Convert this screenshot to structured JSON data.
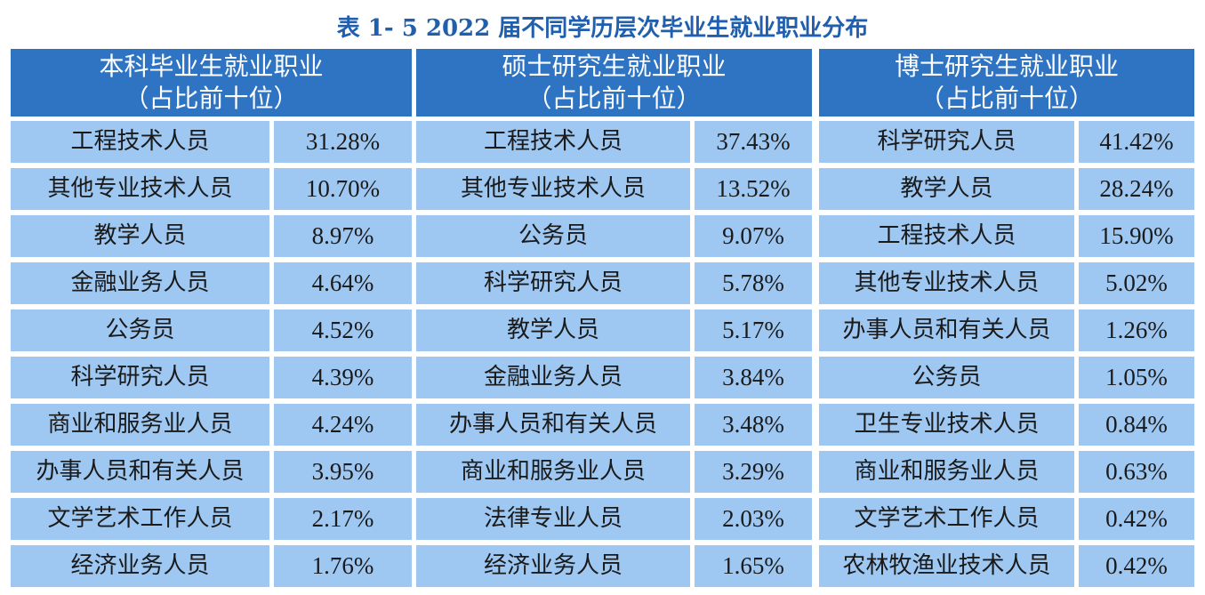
{
  "title": "表 1- 5  2022 届不同学历层次毕业生就业职业分布",
  "columns": [
    {
      "line1": "本科毕业生就业职业",
      "line2": "（占比前十位）"
    },
    {
      "line1": "硕士研究生就业职业",
      "line2": "（占比前十位）"
    },
    {
      "line1": "博士研究生就业职业",
      "line2": "（占比前十位）"
    }
  ],
  "rows": [
    [
      {
        "job": "工程技术人员",
        "pct": "31.28%"
      },
      {
        "job": "工程技术人员",
        "pct": "37.43%"
      },
      {
        "job": "科学研究人员",
        "pct": "41.42%"
      }
    ],
    [
      {
        "job": "其他专业技术人员",
        "pct": "10.70%"
      },
      {
        "job": "其他专业技术人员",
        "pct": "13.52%"
      },
      {
        "job": "教学人员",
        "pct": "28.24%"
      }
    ],
    [
      {
        "job": "教学人员",
        "pct": "8.97%"
      },
      {
        "job": "公务员",
        "pct": "9.07%"
      },
      {
        "job": "工程技术人员",
        "pct": "15.90%"
      }
    ],
    [
      {
        "job": "金融业务人员",
        "pct": "4.64%"
      },
      {
        "job": "科学研究人员",
        "pct": "5.78%"
      },
      {
        "job": "其他专业技术人员",
        "pct": "5.02%"
      }
    ],
    [
      {
        "job": "公务员",
        "pct": "4.52%"
      },
      {
        "job": "教学人员",
        "pct": "5.17%"
      },
      {
        "job": "办事人员和有关人员",
        "pct": "1.26%"
      }
    ],
    [
      {
        "job": "科学研究人员",
        "pct": "4.39%"
      },
      {
        "job": "金融业务人员",
        "pct": "3.84%"
      },
      {
        "job": "公务员",
        "pct": "1.05%"
      }
    ],
    [
      {
        "job": "商业和服务业人员",
        "pct": "4.24%"
      },
      {
        "job": "办事人员和有关人员",
        "pct": "3.48%"
      },
      {
        "job": "卫生专业技术人员",
        "pct": "0.84%"
      }
    ],
    [
      {
        "job": "办事人员和有关人员",
        "pct": "3.95%"
      },
      {
        "job": "商业和服务业人员",
        "pct": "3.29%"
      },
      {
        "job": "商业和服务业人员",
        "pct": "0.63%"
      }
    ],
    [
      {
        "job": "文学艺术工作人员",
        "pct": "2.17%"
      },
      {
        "job": "法律专业人员",
        "pct": "2.03%"
      },
      {
        "job": "文学艺术工作人员",
        "pct": "0.42%"
      }
    ],
    [
      {
        "job": "经济业务人员",
        "pct": "1.76%"
      },
      {
        "job": "经济业务人员",
        "pct": "1.65%"
      },
      {
        "job": "农林牧渔业技术人员",
        "pct": "0.42%"
      }
    ]
  ],
  "colors": {
    "title": "#1f5fae",
    "header_bg": "#2e74c3",
    "cell_bg": "#9ec8f2"
  }
}
